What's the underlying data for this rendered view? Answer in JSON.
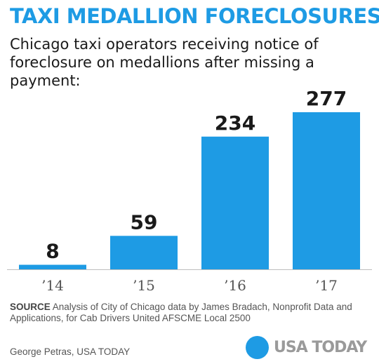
{
  "chart_data": {
    "type": "bar",
    "title": "TAXI MEDALLION FORECLOSURES",
    "subtitle": "Chicago taxi operators receiving notice of foreclosure on medallions after missing a payment:",
    "categories": [
      "’14",
      "’15",
      "’16",
      "’17"
    ],
    "values": [
      8,
      59,
      234,
      277
    ],
    "data_labels": [
      "8",
      "59",
      "234",
      "277"
    ],
    "ylim": [
      0,
      277
    ],
    "grid": false,
    "legend": "none",
    "bar_color": "#1e9be4"
  },
  "footer": {
    "source_label": "SOURCE",
    "source_text": " Analysis of City of Chicago data by James Bradach, Nonprofit Data and Applications, for Cab Drivers United AFSCME Local 2500",
    "credit": "George Petras, USA TODAY",
    "logo_text": "USA TODAY",
    "logo_color": "#1e9be4"
  }
}
